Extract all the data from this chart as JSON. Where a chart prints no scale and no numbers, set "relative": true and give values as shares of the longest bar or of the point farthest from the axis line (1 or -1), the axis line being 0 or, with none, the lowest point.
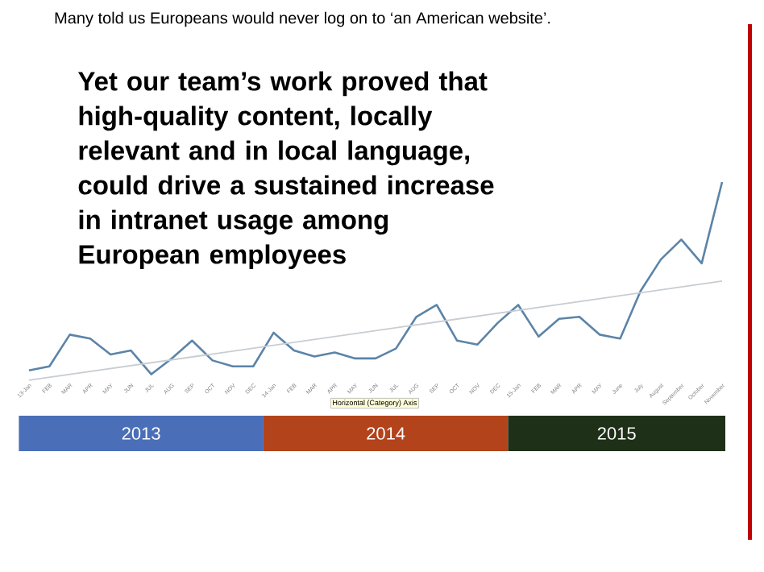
{
  "chart_data": {
    "type": "line",
    "title": "Many told us Europeans would never log on to ‘an American website’.",
    "subtitle": "Yet our team’s work proved that high-quality content, locally relevant and in local language, could drive a sustained increase in intranet usage among European employees",
    "categories": [
      "13-Jan",
      "FEB",
      "MAR",
      "APR",
      "MAY",
      "JUN",
      "JUL",
      "AUG",
      "SEP",
      "OCT",
      "NOV",
      "DEC",
      "14-Jan",
      "FEB",
      "MAR",
      "APR",
      "MAY",
      "JUN",
      "JUL",
      "AUG",
      "SEP",
      "OCT",
      "NOV",
      "DEC",
      "15-Jan",
      "FEB",
      "MAR",
      "APR",
      "MAY",
      "June",
      "July",
      "August",
      "September",
      "October",
      "November"
    ],
    "relative": true,
    "series": [
      {
        "color": "#5b84a8",
        "values": [
          0.05,
          0.07,
          0.23,
          0.21,
          0.13,
          0.15,
          0.03,
          0.11,
          0.2,
          0.1,
          0.07,
          0.07,
          0.24,
          0.15,
          0.12,
          0.14,
          0.11,
          0.11,
          0.16,
          0.32,
          0.38,
          0.2,
          0.18,
          0.29,
          0.38,
          0.22,
          0.31,
          0.32,
          0.23,
          0.21,
          0.45,
          0.61,
          0.71,
          0.59,
          1.0
        ]
      },
      {
        "color": "#c8cdd2",
        "values": [
          0,
          null,
          null,
          null,
          null,
          null,
          null,
          null,
          null,
          null,
          null,
          null,
          null,
          null,
          null,
          null,
          null,
          null,
          null,
          null,
          null,
          null,
          null,
          null,
          null,
          null,
          null,
          null,
          null,
          null,
          null,
          null,
          null,
          null,
          0.5
        ]
      }
    ],
    "annotations": [
      "Horizontal (Category) Axis",
      "2013",
      "2014",
      "2015"
    ]
  }
}
